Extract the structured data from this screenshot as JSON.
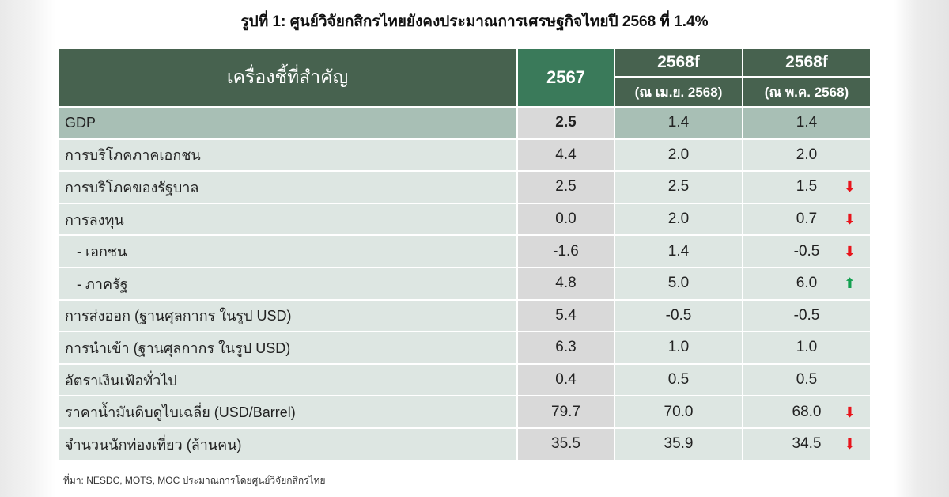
{
  "title": "รูปที่ 1: ศูนย์วิจัยกสิกรไทยยังคงประมาณการเศรษฐกิจไทยปี 2568 ที่ 1.4%",
  "header": {
    "indicator": "เครื่องชี้ที่สำคัญ",
    "y2567": "2567",
    "f1": "2568f",
    "f1_sub": "(ณ เม.ย. 2568)",
    "f2": "2568f",
    "f2_sub": "(ณ พ.ค. 2568)"
  },
  "rows": [
    {
      "label": "GDP",
      "v2567": "2.5",
      "apr": "1.4",
      "may": "1.4",
      "trend": ""
    },
    {
      "label": "การบริโภคภาคเอกชน",
      "v2567": "4.4",
      "apr": "2.0",
      "may": "2.0",
      "trend": ""
    },
    {
      "label": "การบริโภคของรัฐบาล",
      "v2567": "2.5",
      "apr": "2.5",
      "may": "1.5",
      "trend": "down"
    },
    {
      "label": "การลงทุน",
      "v2567": "0.0",
      "apr": "2.0",
      "may": "0.7",
      "trend": "down"
    },
    {
      "label": "   - เอกชน",
      "v2567": "-1.6",
      "apr": "1.4",
      "may": "-0.5",
      "trend": "down"
    },
    {
      "label": "   - ภาครัฐ",
      "v2567": "4.8",
      "apr": "5.0",
      "may": "6.0",
      "trend": "up"
    },
    {
      "label": "การส่งออก (ฐานศุลกากร ในรูป USD)",
      "v2567": "5.4",
      "apr": "-0.5",
      "may": "-0.5",
      "trend": ""
    },
    {
      "label": "การนำเข้า (ฐานศุลกากร ในรูป USD)",
      "v2567": "6.3",
      "apr": "1.0",
      "may": "1.0",
      "trend": ""
    },
    {
      "label": "อัตราเงินเฟ้อทั่วไป",
      "v2567": "0.4",
      "apr": "0.5",
      "may": "0.5",
      "trend": ""
    },
    {
      "label": "ราคาน้ำมันดิบดูไบเฉลี่ย (USD/Barrel)",
      "v2567": "79.7",
      "apr": "70.0",
      "may": "68.0",
      "trend": "down"
    },
    {
      "label": "จำนวนนักท่องเที่ยว (ล้านคน)",
      "v2567": "35.5",
      "apr": "35.9",
      "may": "34.5",
      "trend": "down"
    }
  ],
  "source": "ที่มา: NESDC, MOTS, MOC ประมาณการโดยศูนย์วิจัยกสิกรไทย",
  "colors": {
    "header": "#47624f",
    "header_2567": "#3a7a5a",
    "down": "#e8141b",
    "up": "#13a050"
  }
}
